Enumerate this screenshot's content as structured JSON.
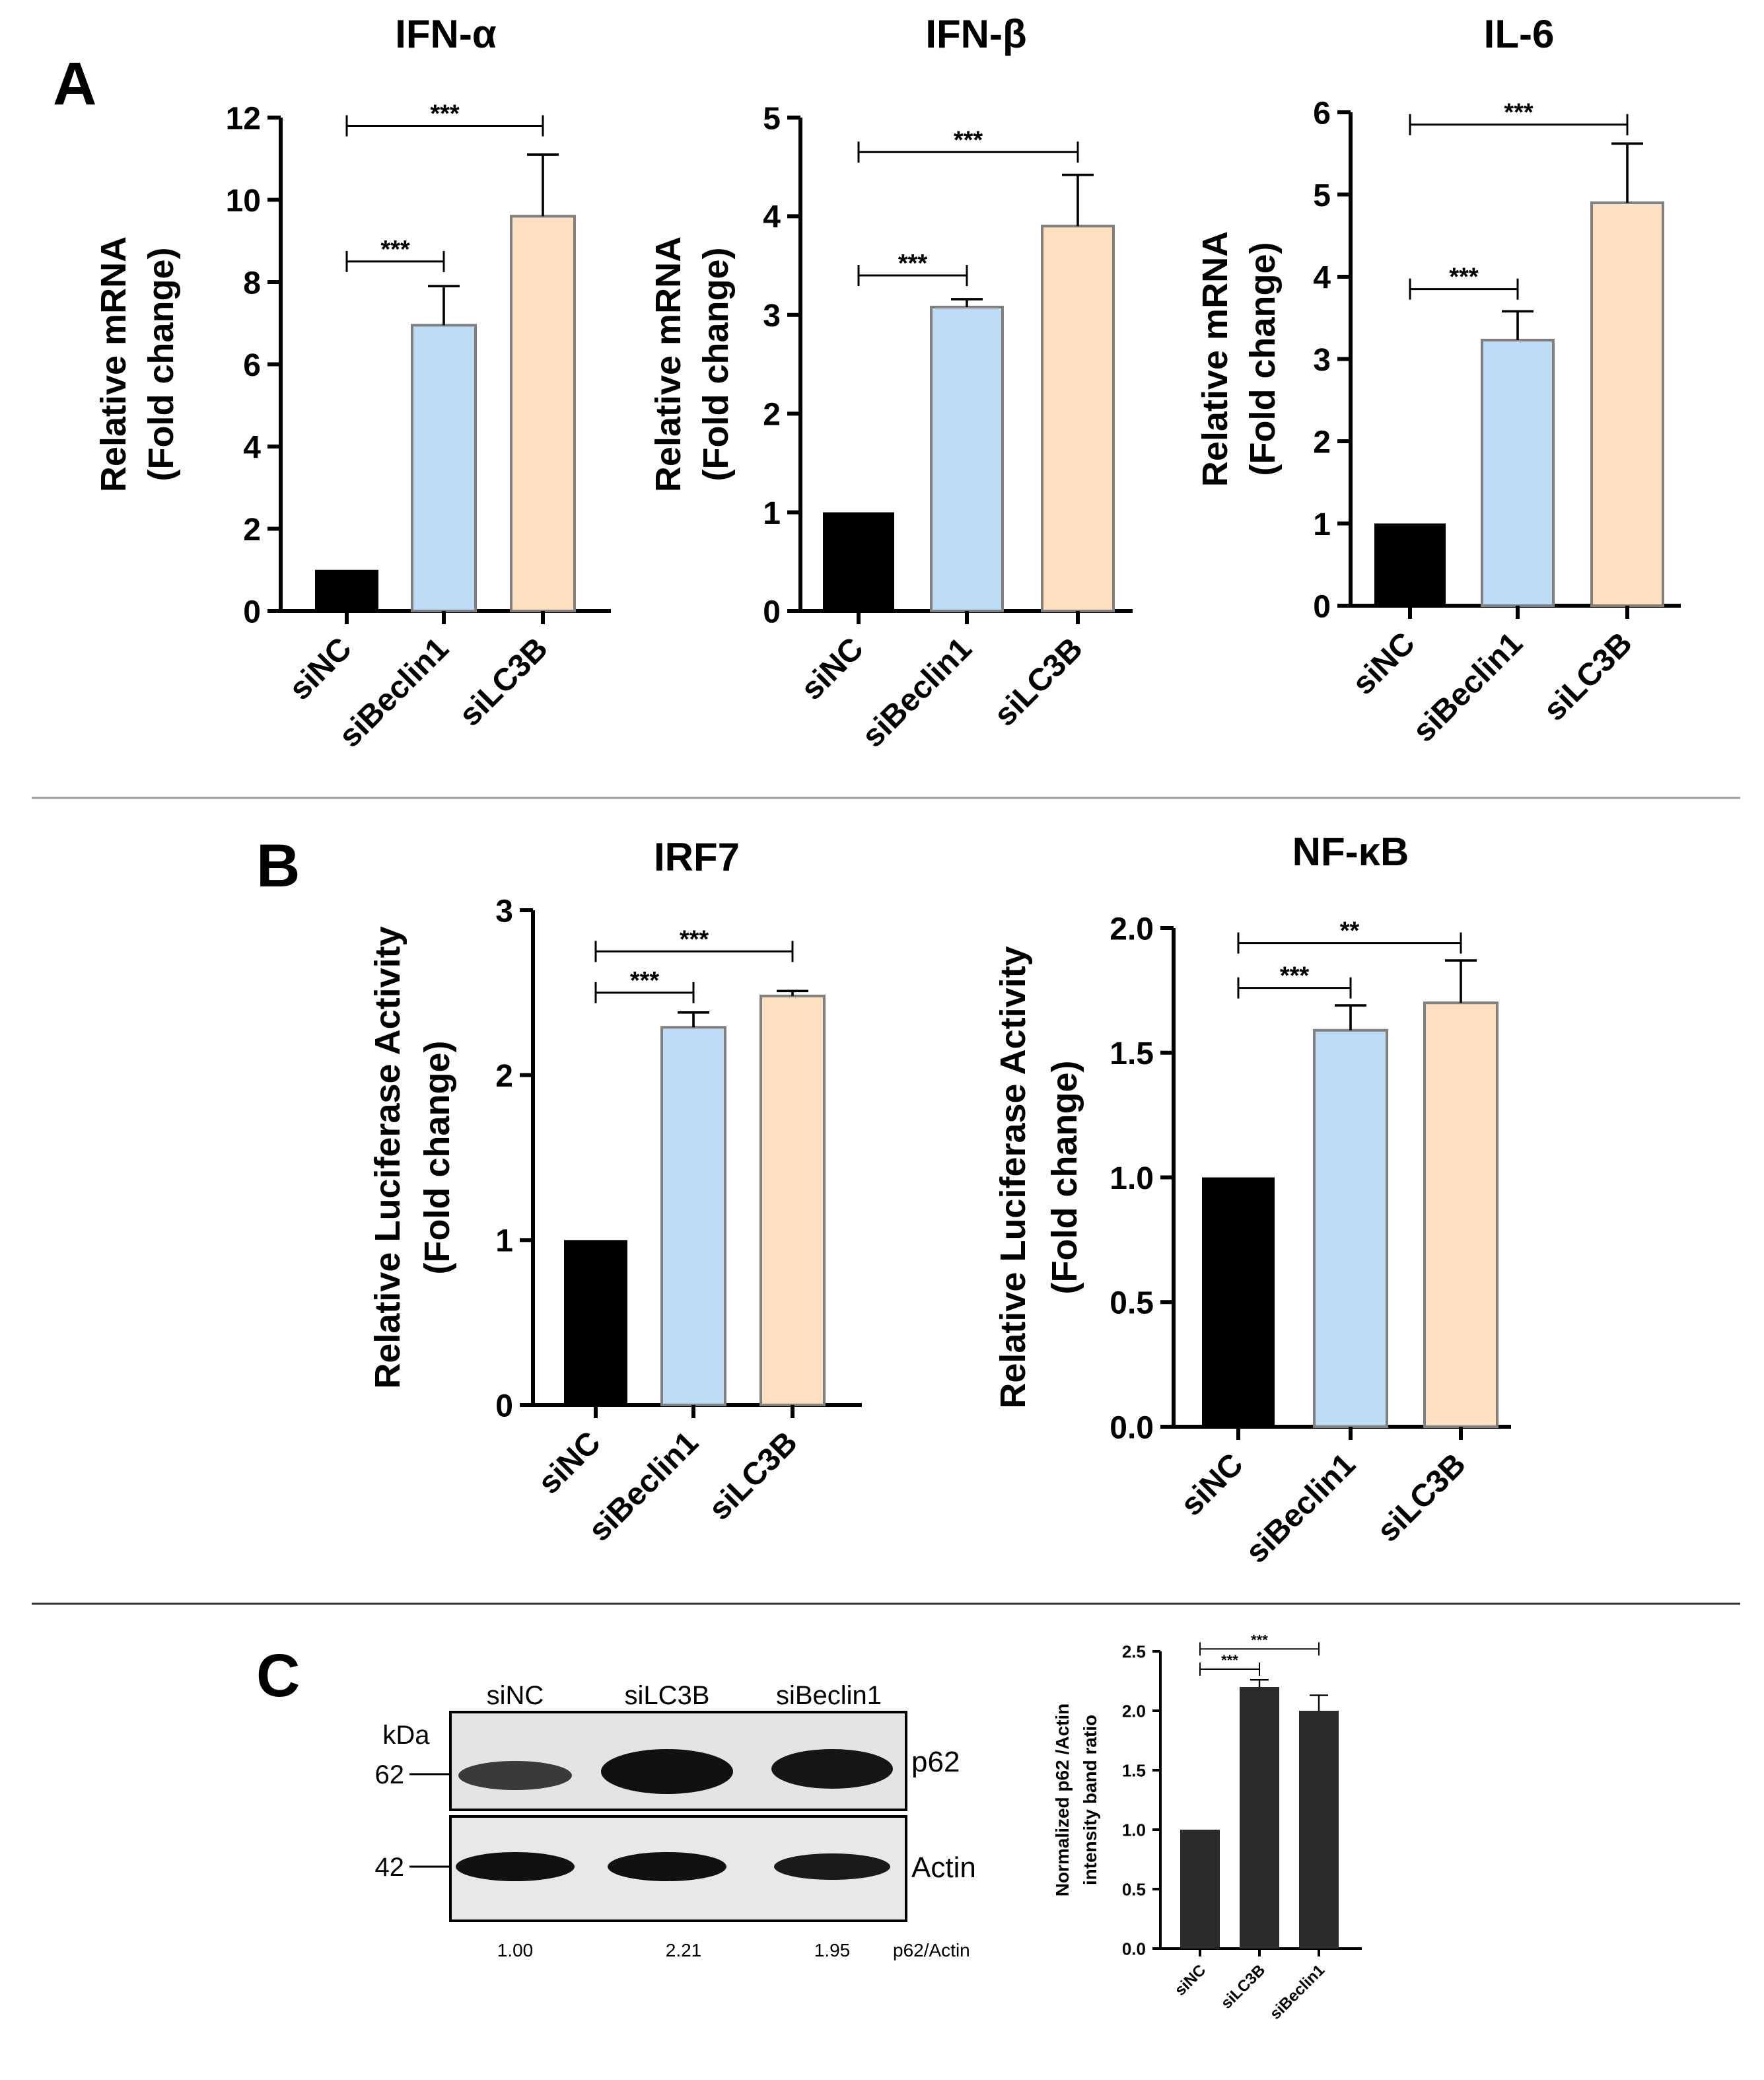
{
  "panels": {
    "A": {
      "label": "A"
    },
    "B": {
      "label": "B"
    },
    "C": {
      "label": "C"
    }
  },
  "colors": {
    "siNC": "#000000",
    "siBeclin1": "#bfdcf7",
    "siLC3B": "#fde0c0",
    "dark_bar": "#2b2b2b",
    "axis": "#000000",
    "divider": "#999999"
  },
  "chart_data": [
    {
      "id": "ifn_alpha",
      "panel": "A",
      "type": "bar",
      "title": "IFN-α",
      "ylabel": [
        "Relative mRNA",
        "(Fold change)"
      ],
      "categories": [
        "siNC",
        "siBeclin1",
        "siLC3B"
      ],
      "values": [
        1,
        6.95,
        9.6
      ],
      "errors": [
        0,
        0.95,
        1.5
      ],
      "colors": [
        "#000000",
        "#bfdcf7",
        "#fde0c0"
      ],
      "ylim": [
        0,
        12
      ],
      "ticks": [
        0,
        2,
        4,
        6,
        8,
        10,
        12
      ],
      "tick_labels": [
        "0",
        "2",
        "4",
        "6",
        "8",
        "10",
        "12"
      ],
      "significance": [
        {
          "from": 0,
          "to": 1,
          "y": 8.5,
          "label": "***"
        },
        {
          "from": 0,
          "to": 2,
          "y": 11.8,
          "label": "***"
        }
      ]
    },
    {
      "id": "ifn_beta",
      "panel": "A",
      "type": "bar",
      "title": "IFN-β",
      "ylabel": [
        "Relative mRNA",
        "(Fold change)"
      ],
      "categories": [
        "siNC",
        "siBeclin1",
        "siLC3B"
      ],
      "values": [
        1,
        3.08,
        3.9
      ],
      "errors": [
        0,
        0.08,
        0.52
      ],
      "colors": [
        "#000000",
        "#bfdcf7",
        "#fde0c0"
      ],
      "ylim": [
        0,
        5
      ],
      "ticks": [
        0,
        1,
        2,
        3,
        4,
        5
      ],
      "tick_labels": [
        "0",
        "1",
        "2",
        "3",
        "4",
        "5"
      ],
      "significance": [
        {
          "from": 0,
          "to": 1,
          "y": 3.4,
          "label": "***"
        },
        {
          "from": 0,
          "to": 2,
          "y": 4.65,
          "label": "***"
        }
      ]
    },
    {
      "id": "il6",
      "panel": "A",
      "type": "bar",
      "title": "IL-6",
      "ylabel": [
        "Relative mRNA",
        "(Fold change)"
      ],
      "categories": [
        "siNC",
        "siBeclin1",
        "siLC3B"
      ],
      "values": [
        1,
        3.23,
        4.9
      ],
      "errors": [
        0,
        0.35,
        0.72
      ],
      "colors": [
        "#000000",
        "#bfdcf7",
        "#fde0c0"
      ],
      "ylim": [
        0,
        6
      ],
      "ticks": [
        0,
        1,
        2,
        3,
        4,
        5,
        6
      ],
      "tick_labels": [
        "0",
        "1",
        "2",
        "3",
        "4",
        "5",
        "6"
      ],
      "significance": [
        {
          "from": 0,
          "to": 1,
          "y": 3.85,
          "label": "***"
        },
        {
          "from": 0,
          "to": 2,
          "y": 5.85,
          "label": "***"
        }
      ]
    },
    {
      "id": "irf7",
      "panel": "B",
      "type": "bar",
      "title": "IRF7",
      "ylabel": [
        "Relative Luciferase Activity",
        "(Fold change)"
      ],
      "categories": [
        "siNC",
        "siBeclin1",
        "siLC3B"
      ],
      "values": [
        1,
        2.29,
        2.48
      ],
      "errors": [
        0,
        0.09,
        0.03
      ],
      "colors": [
        "#000000",
        "#bfdcf7",
        "#fde0c0"
      ],
      "ylim": [
        0,
        3
      ],
      "ticks": [
        0,
        1,
        2,
        3
      ],
      "tick_labels": [
        "0",
        "1",
        "2",
        "3"
      ],
      "significance": [
        {
          "from": 0,
          "to": 1,
          "y": 2.5,
          "label": "***"
        },
        {
          "from": 0,
          "to": 2,
          "y": 2.75,
          "label": "***"
        }
      ]
    },
    {
      "id": "nfkb",
      "panel": "B",
      "type": "bar",
      "title": "NF-κB",
      "ylabel": [
        "Relative Luciferase Activity",
        "(Fold change)"
      ],
      "categories": [
        "siNC",
        "siBeclin1",
        "siLC3B"
      ],
      "values": [
        1,
        1.59,
        1.7
      ],
      "errors": [
        0,
        0.1,
        0.17
      ],
      "colors": [
        "#000000",
        "#bfdcf7",
        "#fde0c0"
      ],
      "ylim": [
        0,
        2
      ],
      "ticks": [
        0,
        0.5,
        1,
        1.5,
        2
      ],
      "tick_labels": [
        "0.0",
        "0.5",
        "1.0",
        "1.5",
        "2.0"
      ],
      "significance": [
        {
          "from": 0,
          "to": 1,
          "y": 1.76,
          "label": "***"
        },
        {
          "from": 0,
          "to": 2,
          "y": 1.94,
          "label": "**"
        }
      ]
    },
    {
      "id": "p62_ratio",
      "panel": "C",
      "type": "bar",
      "title": "",
      "ylabel": [
        "Normalized p62 /Actin",
        "intensity band ratio"
      ],
      "categories": [
        "siNC",
        "siLC3B",
        "siBeclin1"
      ],
      "values": [
        1,
        2.2,
        2.0
      ],
      "errors": [
        0,
        0.06,
        0.13
      ],
      "colors": [
        "#2b2b2b",
        "#2b2b2b",
        "#2b2b2b"
      ],
      "ylim": [
        0,
        2.5
      ],
      "ticks": [
        0,
        0.5,
        1,
        1.5,
        2,
        2.5
      ],
      "tick_labels": [
        "0.0",
        "0.5",
        "1.0",
        "1.5",
        "2.0",
        "2.5"
      ],
      "significance": [
        {
          "from": 0,
          "to": 1,
          "y": 2.35,
          "label": "***"
        },
        {
          "from": 0,
          "to": 2,
          "y": 2.52,
          "label": "***"
        }
      ]
    }
  ],
  "blot": {
    "lanes": [
      "siNC",
      "siLC3B",
      "siBeclin1"
    ],
    "unit": "kDa",
    "markers": [
      "62",
      "42"
    ],
    "bands": [
      "p62",
      "Actin"
    ],
    "ratios": [
      "1.00",
      "2.21",
      "1.95"
    ],
    "ratio_label": "p62/Actin"
  }
}
